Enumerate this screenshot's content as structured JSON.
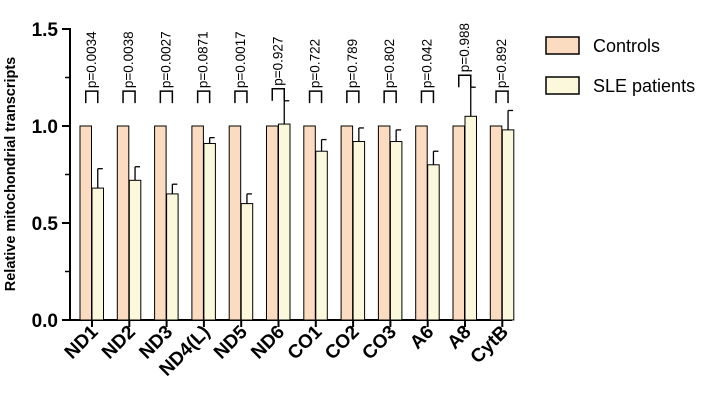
{
  "chart_data": {
    "type": "bar",
    "ylabel": "Relative mitochondrial transcripts",
    "xlabel": "",
    "ylim": [
      0,
      1.5
    ],
    "yticks": [
      "0.0",
      "0.5",
      "1.0",
      "1.5"
    ],
    "categories": [
      "ND1",
      "ND2",
      "ND3",
      "ND4(L)",
      "ND5",
      "ND6",
      "CO1",
      "CO2",
      "CO3",
      "A6",
      "A8",
      "CytB"
    ],
    "series": [
      {
        "name": "Controls",
        "color": "#fcdcc0",
        "values": [
          1,
          1,
          1,
          1,
          1,
          1,
          1,
          1,
          1,
          1,
          1,
          1
        ],
        "errors": [
          0,
          0,
          0,
          0,
          0,
          0,
          0,
          0,
          0,
          0,
          0,
          0
        ]
      },
      {
        "name": "SLE patients",
        "color": "#fcf8dc",
        "values": [
          0.68,
          0.72,
          0.65,
          0.91,
          0.6,
          1.01,
          0.87,
          0.92,
          0.92,
          0.8,
          1.05,
          0.98
        ],
        "errors": [
          0.1,
          0.07,
          0.05,
          0.03,
          0.05,
          0.12,
          0.06,
          0.07,
          0.06,
          0.07,
          0.15,
          0.1
        ]
      }
    ],
    "p_values": [
      "p=0.0034",
      "p=0.0038",
      "p=0.0027",
      "p=0.0871",
      "p=0.0017",
      "p=0.927",
      "p=0.722",
      "p=0.789",
      "p=0.802",
      "p=0.042",
      "p=0.988",
      "p=0.892"
    ],
    "legend_position": "top-right",
    "grid": false
  }
}
